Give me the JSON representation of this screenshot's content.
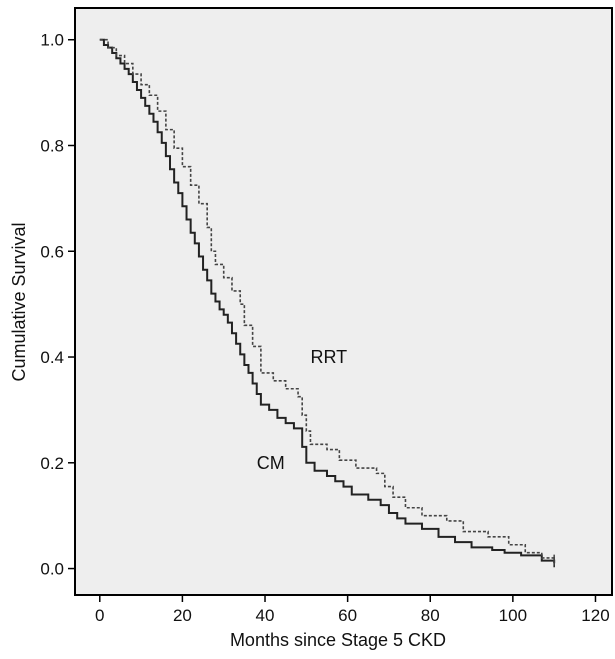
{
  "chart_data": {
    "type": "line",
    "title": "",
    "xlabel": "Months since Stage 5 CKD",
    "ylabel": "Cumulative Survival",
    "xlim": [
      -6,
      124
    ],
    "ylim": [
      -0.05,
      1.06
    ],
    "xticks": [
      0,
      20,
      40,
      60,
      80,
      100,
      120
    ],
    "xtick_labels": [
      "0",
      "20",
      "40",
      "60",
      "80",
      "100",
      "120"
    ],
    "yticks": [
      0.0,
      0.2,
      0.4,
      0.6,
      0.8,
      1.0
    ],
    "ytick_labels": [
      "0.0",
      "0.2",
      "0.4",
      "0.6",
      "0.8",
      "1.0"
    ],
    "grid": false,
    "background": "#eeeeee",
    "series": [
      {
        "name": "CM",
        "label_at": [
          38,
          0.2
        ],
        "color": "#222222",
        "dash": "solid",
        "points": [
          [
            0,
            1.0
          ],
          [
            1,
            0.99
          ],
          [
            2,
            0.985
          ],
          [
            3,
            0.975
          ],
          [
            4,
            0.965
          ],
          [
            5,
            0.955
          ],
          [
            6,
            0.945
          ],
          [
            7,
            0.935
          ],
          [
            8,
            0.92
          ],
          [
            9,
            0.905
          ],
          [
            10,
            0.89
          ],
          [
            11,
            0.875
          ],
          [
            12,
            0.86
          ],
          [
            13,
            0.845
          ],
          [
            14,
            0.825
          ],
          [
            15,
            0.805
          ],
          [
            16,
            0.78
          ],
          [
            17,
            0.755
          ],
          [
            18,
            0.73
          ],
          [
            19,
            0.71
          ],
          [
            20,
            0.685
          ],
          [
            21,
            0.66
          ],
          [
            22,
            0.635
          ],
          [
            23,
            0.615
          ],
          [
            24,
            0.59
          ],
          [
            25,
            0.565
          ],
          [
            26,
            0.545
          ],
          [
            27,
            0.52
          ],
          [
            28,
            0.505
          ],
          [
            29,
            0.49
          ],
          [
            30,
            0.48
          ],
          [
            31,
            0.465
          ],
          [
            32,
            0.445
          ],
          [
            33,
            0.425
          ],
          [
            34,
            0.405
          ],
          [
            35,
            0.385
          ],
          [
            36,
            0.37
          ],
          [
            37,
            0.35
          ],
          [
            38,
            0.33
          ],
          [
            39,
            0.31
          ],
          [
            41,
            0.3
          ],
          [
            43,
            0.285
          ],
          [
            45,
            0.275
          ],
          [
            47,
            0.265
          ],
          [
            49,
            0.23
          ],
          [
            50,
            0.2
          ],
          [
            52,
            0.185
          ],
          [
            55,
            0.175
          ],
          [
            57,
            0.165
          ],
          [
            59,
            0.155
          ],
          [
            61,
            0.14
          ],
          [
            65,
            0.13
          ],
          [
            68,
            0.12
          ],
          [
            70,
            0.105
          ],
          [
            72,
            0.095
          ],
          [
            74,
            0.085
          ],
          [
            78,
            0.075
          ],
          [
            82,
            0.06
          ],
          [
            86,
            0.05
          ],
          [
            90,
            0.04
          ],
          [
            95,
            0.035
          ],
          [
            98,
            0.03
          ],
          [
            102,
            0.025
          ],
          [
            107,
            0.015
          ],
          [
            110,
            0.01
          ]
        ]
      },
      {
        "name": "RRT",
        "label_at": [
          51,
          0.4
        ],
        "color": "#444444",
        "dash": "dotted",
        "points": [
          [
            0,
            1.0
          ],
          [
            2,
            0.985
          ],
          [
            4,
            0.97
          ],
          [
            6,
            0.955
          ],
          [
            8,
            0.935
          ],
          [
            10,
            0.915
          ],
          [
            12,
            0.895
          ],
          [
            14,
            0.865
          ],
          [
            16,
            0.83
          ],
          [
            18,
            0.795
          ],
          [
            20,
            0.76
          ],
          [
            22,
            0.725
          ],
          [
            24,
            0.69
          ],
          [
            26,
            0.645
          ],
          [
            27,
            0.6
          ],
          [
            28,
            0.575
          ],
          [
            30,
            0.55
          ],
          [
            32,
            0.525
          ],
          [
            34,
            0.5
          ],
          [
            35,
            0.46
          ],
          [
            37,
            0.42
          ],
          [
            39,
            0.37
          ],
          [
            42,
            0.355
          ],
          [
            45,
            0.34
          ],
          [
            48,
            0.325
          ],
          [
            49,
            0.29
          ],
          [
            50,
            0.26
          ],
          [
            51,
            0.235
          ],
          [
            55,
            0.225
          ],
          [
            58,
            0.205
          ],
          [
            62,
            0.19
          ],
          [
            67,
            0.18
          ],
          [
            69,
            0.155
          ],
          [
            71,
            0.135
          ],
          [
            74,
            0.115
          ],
          [
            78,
            0.1
          ],
          [
            84,
            0.09
          ],
          [
            88,
            0.07
          ],
          [
            94,
            0.06
          ],
          [
            99,
            0.045
          ],
          [
            103,
            0.03
          ],
          [
            107,
            0.02
          ],
          [
            110,
            0.015
          ]
        ]
      }
    ]
  }
}
